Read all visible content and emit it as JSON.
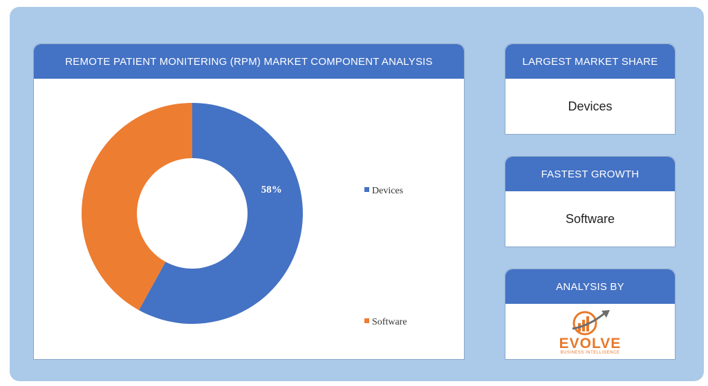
{
  "chart_card": {
    "header": "REMOTE PATIENT MONITERING (RPM) MARKET COMPONENT ANALYSIS"
  },
  "chart_data": {
    "type": "pie",
    "donut": true,
    "title": "REMOTE PATIENT MONITERING (RPM) MARKET COMPONENT ANALYSIS",
    "categories": [
      "Devices",
      "Software"
    ],
    "values": [
      58,
      42
    ],
    "data_labels": [
      "58%",
      ""
    ],
    "colors": [
      "#4472c4",
      "#ed7d31"
    ],
    "legend_position": "right"
  },
  "largest_share": {
    "header": "LARGEST MARKET SHARE",
    "value": "Devices"
  },
  "fastest_growth": {
    "header": "FASTEST GROWTH",
    "value": "Software"
  },
  "analysis_by": {
    "header": "ANALYSIS BY",
    "logo_name": "EVOLVE",
    "logo_tagline": "BUSINESS INTELLIGENCE"
  }
}
